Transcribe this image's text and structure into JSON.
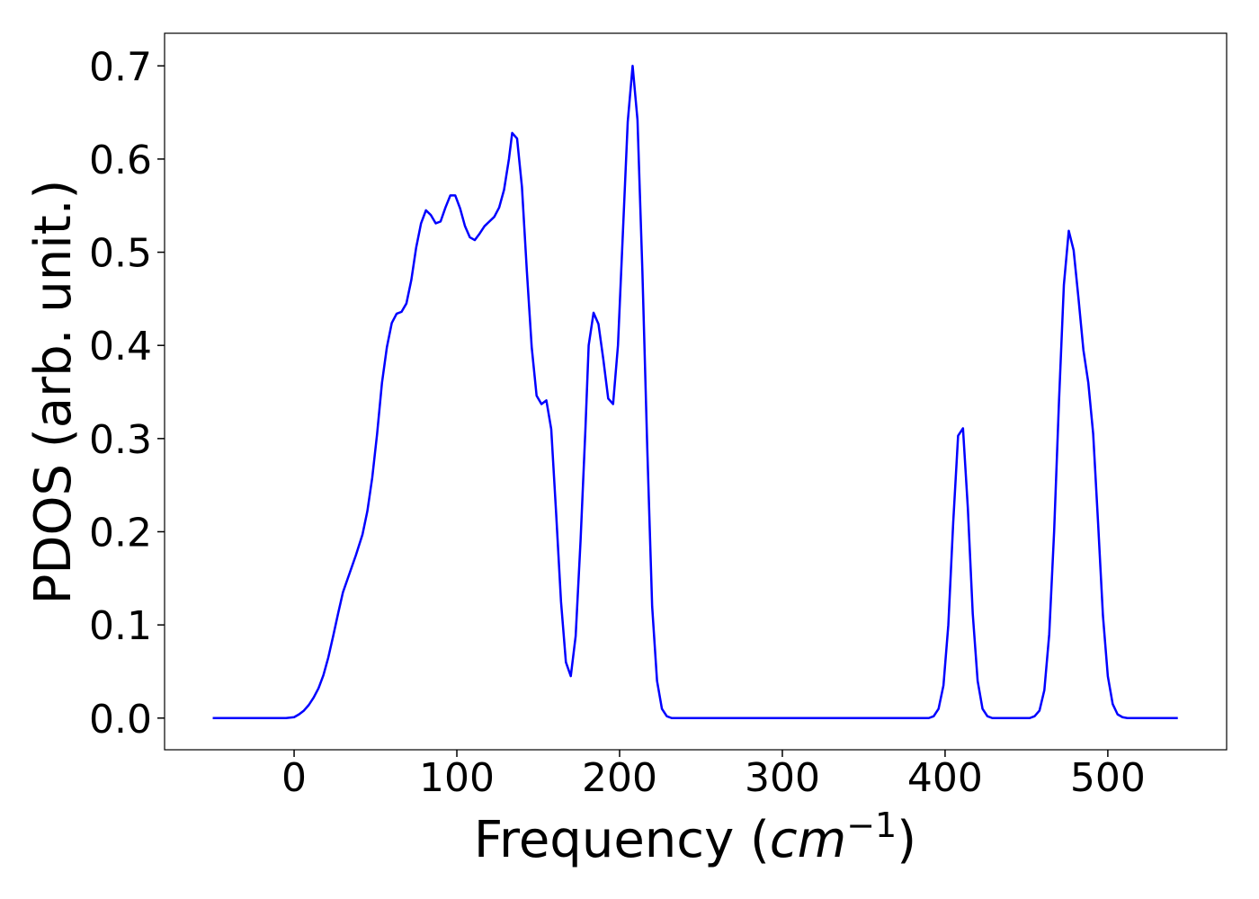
{
  "chart_data": {
    "type": "line",
    "xlabel": [
      "Frequency (",
      "cm",
      "−1",
      ")"
    ],
    "ylabel": "PDOS (arb. unit.)",
    "color": "#0000ff",
    "x": [
      -50,
      -5,
      0,
      3,
      6,
      9,
      12,
      15,
      18,
      21,
      24,
      27,
      30,
      34,
      38,
      42,
      45,
      48,
      51,
      54,
      57,
      60,
      63,
      66,
      69,
      72,
      75,
      78,
      81,
      84,
      87,
      90,
      93,
      96,
      99,
      102,
      105,
      108,
      111,
      114,
      117,
      120,
      123,
      126,
      129,
      132,
      134,
      137,
      140,
      143,
      146,
      149,
      152,
      155,
      158,
      161,
      164,
      167,
      170,
      173,
      176,
      179,
      181,
      184,
      187,
      190,
      193,
      196,
      199,
      202,
      205,
      208,
      211,
      214,
      217,
      220,
      223,
      226,
      229,
      232,
      390,
      393,
      396,
      399,
      402,
      405,
      408,
      411,
      414,
      417,
      420,
      423,
      426,
      429,
      452,
      455,
      458,
      461,
      464,
      467,
      470,
      473,
      476,
      479,
      482,
      485,
      488,
      491,
      494,
      497,
      500,
      503,
      506,
      509,
      512,
      543
    ],
    "values": [
      0,
      0,
      0.001,
      0.004,
      0.008,
      0.014,
      0.022,
      0.032,
      0.046,
      0.065,
      0.088,
      0.112,
      0.135,
      0.155,
      0.175,
      0.197,
      0.222,
      0.258,
      0.305,
      0.36,
      0.398,
      0.424,
      0.434,
      0.436,
      0.445,
      0.47,
      0.505,
      0.531,
      0.545,
      0.54,
      0.531,
      0.533,
      0.548,
      0.561,
      0.561,
      0.547,
      0.528,
      0.516,
      0.513,
      0.52,
      0.528,
      0.533,
      0.538,
      0.548,
      0.567,
      0.6,
      0.628,
      0.622,
      0.57,
      0.48,
      0.398,
      0.346,
      0.337,
      0.341,
      0.31,
      0.22,
      0.125,
      0.06,
      0.045,
      0.088,
      0.19,
      0.31,
      0.4,
      0.435,
      0.423,
      0.385,
      0.343,
      0.337,
      0.4,
      0.52,
      0.64,
      0.7,
      0.642,
      0.48,
      0.29,
      0.12,
      0.04,
      0.01,
      0.002,
      0,
      0,
      0.002,
      0.01,
      0.035,
      0.1,
      0.21,
      0.303,
      0.311,
      0.225,
      0.112,
      0.04,
      0.01,
      0.002,
      0,
      0,
      0.002,
      0.008,
      0.03,
      0.09,
      0.2,
      0.34,
      0.465,
      0.523,
      0.502,
      0.45,
      0.395,
      0.36,
      0.305,
      0.21,
      0.11,
      0.045,
      0.015,
      0.004,
      0.001,
      0,
      0
    ],
    "xlim": [
      -79.6,
      573
    ],
    "ylim": [
      -0.034,
      0.735
    ],
    "xticks": [
      0,
      100,
      200,
      300,
      400,
      500
    ],
    "yticks": [
      {
        "value": 0,
        "label": "0.0"
      },
      0.1,
      0.2,
      0.3,
      0.4,
      0.5,
      0.6,
      0.7
    ]
  }
}
